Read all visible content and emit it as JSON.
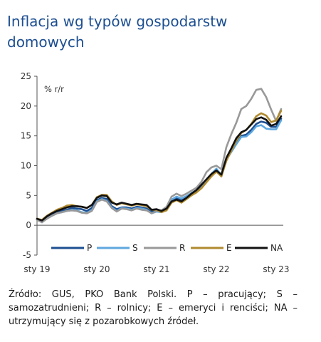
{
  "title": "Inflacja wg typów gospodarstw domowych",
  "source": "Źródło: GUS, PKO Bank Polski. P – pracujący; S – samozatrudnieni; R – rolnicy; E – emeryci i renciści; NA – utrzymujący się z pozarobkowych źródeł.",
  "chart_data": {
    "type": "line",
    "unit_label": "% r/r",
    "ylim": [
      -5,
      25
    ],
    "yticks": [
      -5,
      0,
      5,
      10,
      15,
      20,
      25
    ],
    "xtick_labels": [
      "sty 19",
      "sty 20",
      "sty 21",
      "sty 22",
      "sty 23"
    ],
    "xtick_index": [
      0,
      12,
      24,
      36,
      48
    ],
    "grid": false,
    "legend_position": "bottom inside",
    "series": [
      {
        "name": "P",
        "color": "#1d4f91",
        "values": [
          1.0,
          0.8,
          1.4,
          1.8,
          2.2,
          2.4,
          2.6,
          2.9,
          2.8,
          2.7,
          2.4,
          2.9,
          4.2,
          4.6,
          4.4,
          3.2,
          2.7,
          3.0,
          3.0,
          2.8,
          3.1,
          3.0,
          2.8,
          2.3,
          2.5,
          2.3,
          3.0,
          4.2,
          4.6,
          4.3,
          4.8,
          5.3,
          5.8,
          6.7,
          7.5,
          8.5,
          9.3,
          8.2,
          11.0,
          12.4,
          13.9,
          15.0,
          15.2,
          16.0,
          17.0,
          17.4,
          17.2,
          16.5,
          16.5,
          17.9
        ]
      },
      {
        "name": "S",
        "color": "#5ea7df",
        "values": [
          1.0,
          0.5,
          1.2,
          1.6,
          2.0,
          2.2,
          2.4,
          2.6,
          2.5,
          2.2,
          2.1,
          2.5,
          4.0,
          4.4,
          4.1,
          3.0,
          2.4,
          2.9,
          2.8,
          2.6,
          2.9,
          2.8,
          2.6,
          2.0,
          2.3,
          2.2,
          2.9,
          4.3,
          4.8,
          4.5,
          4.9,
          5.4,
          5.9,
          6.8,
          7.6,
          8.6,
          9.5,
          8.4,
          11.0,
          12.3,
          13.6,
          14.8,
          14.9,
          15.6,
          16.6,
          16.8,
          16.2,
          16.1,
          16.1,
          17.6
        ]
      },
      {
        "name": "R",
        "color": "#999999",
        "values": [
          0.9,
          0.5,
          1.1,
          1.6,
          2.0,
          2.2,
          2.4,
          2.5,
          2.4,
          2.1,
          2.0,
          2.4,
          3.9,
          4.3,
          4.0,
          2.9,
          2.3,
          2.8,
          2.7,
          2.5,
          2.8,
          2.6,
          2.5,
          2.0,
          2.4,
          2.5,
          3.1,
          4.8,
          5.3,
          4.9,
          5.3,
          5.8,
          6.3,
          7.3,
          8.9,
          9.7,
          10.0,
          9.4,
          13.1,
          15.3,
          17.2,
          19.5,
          20.0,
          21.2,
          22.7,
          22.9,
          21.5,
          19.4,
          17.5,
          19.5
        ]
      },
      {
        "name": "E",
        "color": "#b08a2e",
        "values": [
          1.1,
          0.9,
          1.6,
          2.1,
          2.6,
          2.9,
          3.3,
          3.4,
          3.2,
          3.1,
          2.9,
          3.4,
          4.7,
          5.1,
          5.1,
          4.0,
          3.4,
          3.7,
          3.5,
          3.3,
          3.5,
          3.4,
          3.2,
          2.6,
          2.6,
          2.2,
          2.5,
          3.8,
          4.2,
          3.8,
          4.4,
          5.0,
          5.5,
          6.2,
          7.2,
          8.2,
          9.0,
          8.2,
          10.8,
          12.5,
          14.2,
          15.5,
          16.0,
          17.0,
          18.3,
          18.8,
          18.4,
          17.3,
          17.6,
          19.2
        ]
      },
      {
        "name": "NA",
        "color": "#111111",
        "values": [
          1.1,
          0.8,
          1.5,
          2.0,
          2.4,
          2.7,
          3.0,
          3.2,
          3.2,
          3.1,
          2.9,
          3.4,
          4.6,
          5.0,
          4.9,
          3.8,
          3.5,
          3.8,
          3.6,
          3.4,
          3.6,
          3.5,
          3.4,
          2.6,
          2.7,
          2.4,
          2.8,
          4.0,
          4.3,
          4.0,
          4.6,
          5.3,
          5.9,
          6.8,
          7.7,
          8.6,
          9.2,
          8.5,
          11.3,
          12.9,
          14.6,
          15.6,
          16.0,
          16.9,
          17.8,
          18.1,
          17.7,
          16.7,
          17.0,
          18.3
        ]
      }
    ]
  }
}
